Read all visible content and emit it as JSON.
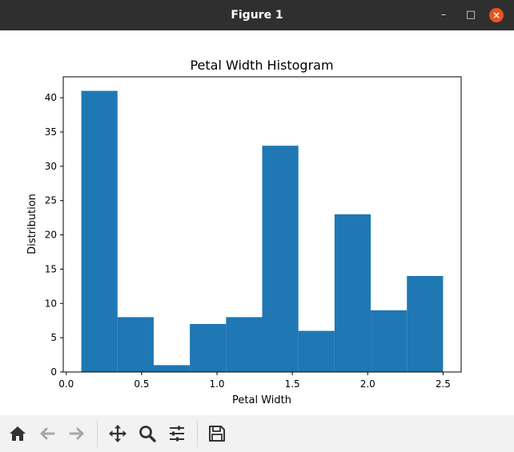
{
  "window": {
    "title": "Figure 1",
    "controls": {
      "minimize": "–",
      "maximize": "□",
      "close": "×"
    }
  },
  "toolbar": {
    "buttons": [
      {
        "name": "home-button",
        "icon": "home-icon"
      },
      {
        "name": "back-button",
        "icon": "arrow-left-icon"
      },
      {
        "name": "forward-button",
        "icon": "arrow-right-icon"
      },
      {
        "name": "pan-button",
        "icon": "move-icon"
      },
      {
        "name": "zoom-button",
        "icon": "magnifier-icon"
      },
      {
        "name": "configure-subplots-button",
        "icon": "sliders-icon"
      },
      {
        "name": "save-button",
        "icon": "floppy-disk-icon"
      }
    ]
  },
  "colors": {
    "bar": "#1f77b4",
    "titlebar": "#2f2f2f",
    "close": "#e95420"
  },
  "chart_data": {
    "type": "bar",
    "title": "Petal Width Histogram",
    "xlabel": "Petal Width",
    "ylabel": "Distribution",
    "xlim": [
      -0.02,
      2.62
    ],
    "ylim": [
      0,
      43.05
    ],
    "xticks": [
      "0.0",
      "0.5",
      "1.0",
      "1.5",
      "2.0",
      "2.5"
    ],
    "yticks": [
      "0",
      "5",
      "10",
      "15",
      "20",
      "25",
      "30",
      "35",
      "40"
    ],
    "bin_edges": [
      0.1,
      0.34,
      0.58,
      0.82,
      1.06,
      1.3,
      1.54,
      1.78,
      2.02,
      2.26,
      2.5
    ],
    "values": [
      41,
      8,
      1,
      7,
      8,
      33,
      6,
      23,
      9,
      14
    ],
    "grid": false,
    "legend": "none"
  }
}
